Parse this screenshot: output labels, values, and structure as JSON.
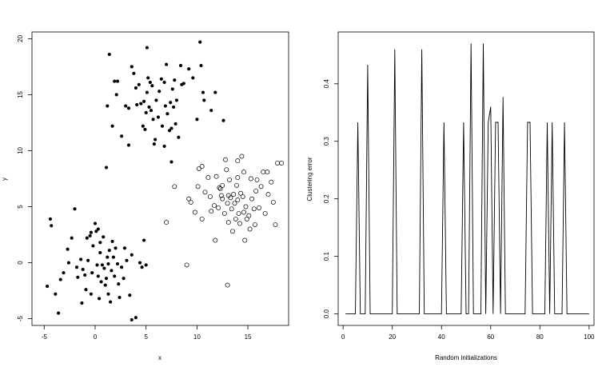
{
  "chart_data": [
    {
      "type": "scatter",
      "xlabel": "x",
      "ylabel": "y",
      "xlim": [
        -6.2,
        19.0
      ],
      "ylim": [
        -5.6,
        20.6
      ],
      "xticks": [
        -5,
        0,
        5,
        10,
        15
      ],
      "yticks": [
        -5,
        0,
        5,
        10,
        15,
        20
      ],
      "grid": false,
      "series": [
        {
          "marker": "filled-circle",
          "color": "#000000",
          "points": [
            [
              -4.4,
              3.9
            ],
            [
              -4.3,
              3.3
            ],
            [
              -3.9,
              -2.8
            ],
            [
              -3.6,
              -4.5
            ],
            [
              -3.4,
              -1.5
            ],
            [
              -3.1,
              -0.9
            ],
            [
              -2.7,
              1.2
            ],
            [
              -2.3,
              2.2
            ],
            [
              -2.0,
              4.8
            ],
            [
              -4.7,
              -2.1
            ],
            [
              -1.8,
              -0.4
            ],
            [
              -1.4,
              0.3
            ],
            [
              -1.2,
              -0.6
            ],
            [
              -1.0,
              -1.1
            ],
            [
              -0.9,
              -2.4
            ],
            [
              -0.7,
              0.2
            ],
            [
              -0.5,
              2.4
            ],
            [
              -0.4,
              2.7
            ],
            [
              -0.3,
              -0.9
            ],
            [
              -0.2,
              1.5
            ],
            [
              0.0,
              3.5
            ],
            [
              0.1,
              2.8
            ],
            [
              0.2,
              -0.2
            ],
            [
              0.3,
              -1.2
            ],
            [
              0.3,
              3.0
            ],
            [
              0.4,
              -3.2
            ],
            [
              0.5,
              1.8
            ],
            [
              0.6,
              -1.7
            ],
            [
              0.7,
              -0.2
            ],
            [
              0.8,
              2.3
            ],
            [
              0.9,
              -0.5
            ],
            [
              1.0,
              -2.0
            ],
            [
              1.1,
              -1.4
            ],
            [
              1.2,
              0.5
            ],
            [
              1.3,
              -2.8
            ],
            [
              1.3,
              -0.1
            ],
            [
              1.4,
              1.1
            ],
            [
              1.5,
              -3.5
            ],
            [
              1.6,
              -0.7
            ],
            [
              1.7,
              1.9
            ],
            [
              1.8,
              0.5
            ],
            [
              1.9,
              -1.2
            ],
            [
              2.0,
              1.3
            ],
            [
              2.2,
              -0.1
            ],
            [
              2.4,
              -3.1
            ],
            [
              2.6,
              -0.4
            ],
            [
              2.8,
              -1.4
            ],
            [
              2.9,
              1.3
            ],
            [
              3.1,
              0.2
            ],
            [
              3.4,
              -2.9
            ],
            [
              3.6,
              0.7
            ],
            [
              3.6,
              -5.1
            ],
            [
              4.0,
              -4.9
            ],
            [
              4.4,
              0.0
            ],
            [
              4.8,
              2.0
            ],
            [
              4.6,
              -0.4
            ],
            [
              5.0,
              -0.2
            ],
            [
              -1.3,
              -3.6
            ],
            [
              -0.4,
              -2.8
            ],
            [
              -1.7,
              -1.3
            ],
            [
              -0.8,
              2.2
            ],
            [
              0.5,
              0.9
            ],
            [
              2.3,
              -1.9
            ],
            [
              -2.6,
              0.0
            ],
            [
              1.2,
              14.0
            ],
            [
              1.4,
              18.6
            ],
            [
              1.7,
              12.2
            ],
            [
              1.9,
              16.2
            ],
            [
              2.2,
              16.2
            ],
            [
              2.6,
              11.3
            ],
            [
              3.0,
              14.0
            ],
            [
              3.3,
              13.8
            ],
            [
              3.6,
              17.5
            ],
            [
              3.8,
              16.9
            ],
            [
              4.0,
              15.6
            ],
            [
              4.1,
              14.1
            ],
            [
              4.3,
              15.9
            ],
            [
              4.5,
              14.2
            ],
            [
              4.7,
              12.2
            ],
            [
              4.8,
              14.4
            ],
            [
              4.9,
              11.9
            ],
            [
              5.0,
              13.4
            ],
            [
              5.1,
              15.2
            ],
            [
              5.2,
              16.5
            ],
            [
              5.4,
              16.1
            ],
            [
              5.5,
              13.6
            ],
            [
              5.6,
              15.8
            ],
            [
              5.7,
              12.8
            ],
            [
              5.9,
              11.0
            ],
            [
              6.0,
              14.5
            ],
            [
              6.2,
              13.0
            ],
            [
              6.3,
              15.3
            ],
            [
              6.5,
              16.4
            ],
            [
              6.6,
              12.2
            ],
            [
              6.8,
              16.1
            ],
            [
              6.9,
              14.0
            ],
            [
              7.0,
              17.7
            ],
            [
              7.1,
              13.3
            ],
            [
              7.3,
              11.8
            ],
            [
              7.4,
              14.3
            ],
            [
              7.5,
              12.0
            ],
            [
              7.6,
              15.5
            ],
            [
              7.7,
              13.9
            ],
            [
              7.8,
              16.3
            ],
            [
              7.9,
              12.4
            ],
            [
              8.0,
              14.5
            ],
            [
              8.2,
              11.2
            ],
            [
              8.4,
              17.6
            ],
            [
              8.5,
              15.9
            ],
            [
              8.7,
              16.0
            ],
            [
              9.6,
              16.5
            ],
            [
              10.0,
              12.8
            ],
            [
              10.4,
              17.6
            ],
            [
              10.6,
              15.2
            ],
            [
              10.7,
              14.5
            ],
            [
              11.4,
              13.6
            ],
            [
              11.8,
              15.2
            ],
            [
              12.6,
              12.7
            ],
            [
              10.3,
              19.7
            ],
            [
              5.1,
              19.2
            ],
            [
              7.5,
              9.0
            ],
            [
              6.8,
              10.4
            ],
            [
              1.1,
              8.5
            ],
            [
              3.3,
              10.5
            ],
            [
              5.8,
              10.6
            ],
            [
              2.1,
              15.0
            ],
            [
              9.2,
              17.3
            ],
            [
              5.3,
              13.9
            ]
          ]
        },
        {
          "marker": "open-circle",
          "color": "#000000",
          "points": [
            [
              7.0,
              3.6
            ],
            [
              7.8,
              6.8
            ],
            [
              9.0,
              -0.2
            ],
            [
              9.2,
              5.7
            ],
            [
              9.4,
              5.4
            ],
            [
              10.2,
              8.4
            ],
            [
              10.5,
              8.6
            ],
            [
              10.5,
              3.9
            ],
            [
              10.8,
              6.3
            ],
            [
              11.1,
              7.6
            ],
            [
              11.4,
              4.6
            ],
            [
              11.7,
              5.1
            ],
            [
              11.9,
              7.7
            ],
            [
              12.1,
              4.9
            ],
            [
              12.3,
              6.6
            ],
            [
              12.4,
              6.0
            ],
            [
              12.5,
              5.7
            ],
            [
              12.5,
              6.9
            ],
            [
              12.7,
              4.4
            ],
            [
              12.8,
              9.2
            ],
            [
              13.0,
              5.3
            ],
            [
              13.1,
              3.6
            ],
            [
              13.1,
              6.0
            ],
            [
              13.2,
              7.4
            ],
            [
              13.3,
              5.8
            ],
            [
              13.4,
              4.8
            ],
            [
              13.6,
              6.1
            ],
            [
              13.7,
              5.3
            ],
            [
              13.8,
              3.9
            ],
            [
              13.9,
              6.9
            ],
            [
              14.0,
              7.6
            ],
            [
              14.0,
              5.6
            ],
            [
              14.1,
              4.4
            ],
            [
              14.2,
              3.5
            ],
            [
              14.3,
              6.2
            ],
            [
              14.4,
              9.5
            ],
            [
              14.5,
              5.9
            ],
            [
              14.6,
              8.1
            ],
            [
              14.7,
              2.0
            ],
            [
              14.8,
              5.0
            ],
            [
              14.9,
              3.9
            ],
            [
              15.1,
              4.2
            ],
            [
              15.3,
              7.5
            ],
            [
              15.4,
              5.7
            ],
            [
              15.6,
              4.8
            ],
            [
              15.7,
              3.4
            ],
            [
              15.8,
              6.4
            ],
            [
              16.1,
              4.9
            ],
            [
              16.3,
              6.8
            ],
            [
              16.5,
              8.1
            ],
            [
              16.7,
              4.4
            ],
            [
              17.0,
              6.1
            ],
            [
              17.3,
              7.2
            ],
            [
              17.5,
              5.4
            ],
            [
              17.7,
              3.4
            ],
            [
              17.9,
              8.9
            ],
            [
              18.3,
              8.9
            ],
            [
              13.0,
              -2.0
            ],
            [
              11.8,
              2.0
            ],
            [
              10.1,
              6.8
            ],
            [
              12.2,
              6.7
            ],
            [
              14.0,
              9.1
            ],
            [
              15.9,
              7.4
            ],
            [
              13.5,
              2.8
            ],
            [
              11.3,
              5.9
            ],
            [
              16.9,
              8.1
            ],
            [
              9.8,
              4.5
            ],
            [
              12.9,
              8.3
            ],
            [
              14.6,
              4.5
            ],
            [
              15.2,
              3.0
            ]
          ]
        }
      ]
    },
    {
      "type": "line",
      "xlabel": "Random initializations",
      "ylabel": "Clustering error",
      "xlim": [
        -2,
        102
      ],
      "ylim": [
        -0.02,
        0.49
      ],
      "xticks": [
        0,
        20,
        40,
        60,
        80,
        100
      ],
      "yticks": [
        0.0,
        0.1,
        0.2,
        0.3,
        0.4
      ],
      "grid": false,
      "series": [
        {
          "color": "#000000",
          "x": [
            1,
            2,
            3,
            4,
            5,
            6,
            7,
            8,
            9,
            10,
            11,
            12,
            13,
            14,
            15,
            16,
            17,
            18,
            19,
            20,
            21,
            22,
            23,
            24,
            25,
            26,
            27,
            28,
            29,
            30,
            31,
            32,
            33,
            34,
            35,
            36,
            37,
            38,
            39,
            40,
            41,
            42,
            43,
            44,
            45,
            46,
            47,
            48,
            49,
            50,
            51,
            52,
            53,
            54,
            55,
            56,
            57,
            58,
            59,
            60,
            61,
            62,
            63,
            64,
            65,
            66,
            67,
            68,
            69,
            70,
            71,
            72,
            73,
            74,
            75,
            76,
            77,
            78,
            79,
            80,
            81,
            82,
            83,
            84,
            85,
            86,
            87,
            88,
            89,
            90,
            91,
            92,
            93,
            94,
            95,
            96,
            97,
            98,
            99,
            100
          ],
          "y": [
            0,
            0,
            0,
            0,
            0,
            0.333,
            0,
            0,
            0,
            0.433,
            0,
            0,
            0,
            0,
            0,
            0,
            0,
            0,
            0,
            0,
            0.46,
            0,
            0,
            0,
            0,
            0,
            0,
            0,
            0,
            0,
            0,
            0.46,
            0,
            0,
            0,
            0,
            0,
            0,
            0,
            0,
            0.333,
            0,
            0,
            0,
            0,
            0,
            0,
            0,
            0.333,
            0,
            0,
            0.47,
            0,
            0,
            0,
            0,
            0.47,
            0,
            0.333,
            0.36,
            0,
            0.333,
            0.333,
            0,
            0.377,
            0,
            0,
            0,
            0,
            0,
            0,
            0,
            0,
            0,
            0.333,
            0.333,
            0,
            0,
            0,
            0,
            0,
            0,
            0.333,
            0,
            0.333,
            0,
            0,
            0,
            0,
            0.333,
            0,
            0,
            0,
            0,
            0,
            0,
            0,
            0,
            0,
            0
          ]
        }
      ]
    }
  ]
}
